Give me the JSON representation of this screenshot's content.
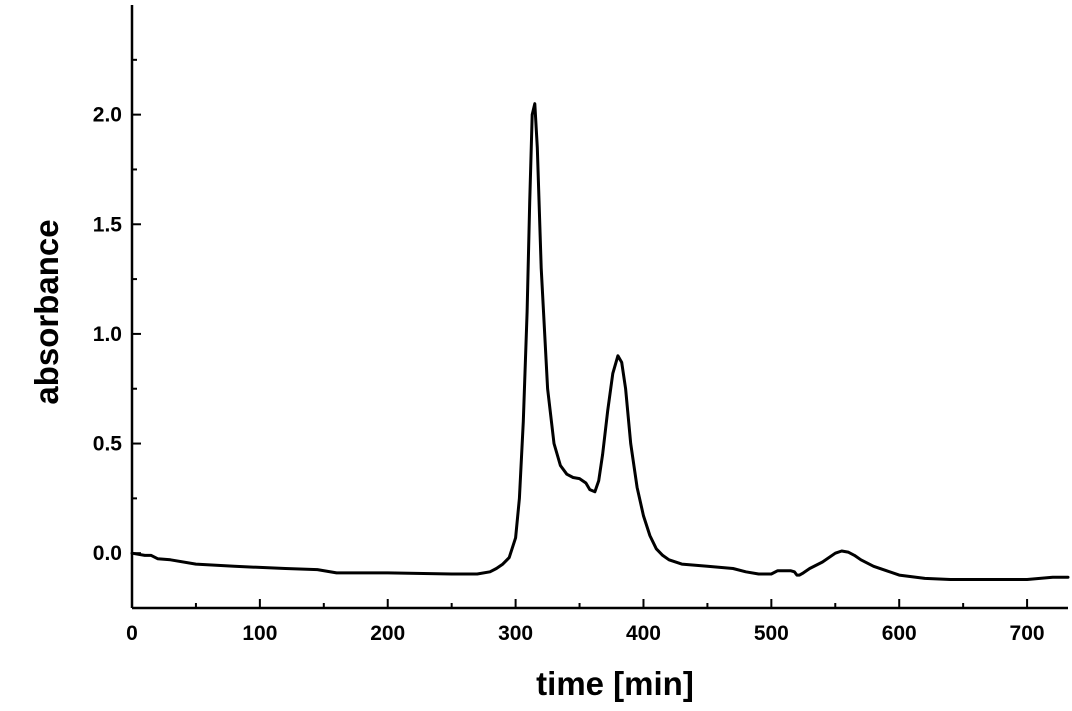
{
  "chart_data": {
    "type": "line",
    "xlabel": "time [min]",
    "ylabel": "absorbance",
    "xlim": [
      0,
      732
    ],
    "ylim": [
      -0.25,
      2.5
    ],
    "grid": false,
    "legend": "none",
    "line_color": "#000000",
    "x_ticks": [
      0,
      100,
      200,
      300,
      400,
      500,
      600,
      700
    ],
    "x_tick_labels": [
      "0",
      "100",
      "200",
      "300",
      "400",
      "500",
      "600",
      "700"
    ],
    "y_ticks": [
      0.0,
      0.5,
      1.0,
      1.5,
      2.0
    ],
    "y_tick_labels": [
      "0.0",
      "0.5",
      "1.0",
      "1.5",
      "2.0"
    ],
    "series": [
      {
        "x": [
          0,
          10,
          15,
          20,
          30,
          50,
          80,
          100,
          120,
          145,
          160,
          200,
          250,
          270,
          280,
          285,
          290,
          295,
          300,
          303,
          306,
          309,
          311,
          313,
          315,
          317,
          320,
          325,
          330,
          335,
          340,
          345,
          350,
          355,
          358,
          362,
          365,
          368,
          372,
          376,
          380,
          383,
          386,
          390,
          395,
          400,
          405,
          410,
          415,
          420,
          430,
          450,
          470,
          480,
          490,
          500,
          505,
          510,
          515,
          518,
          520,
          522,
          525,
          530,
          540,
          550,
          555,
          560,
          565,
          570,
          580,
          590,
          600,
          620,
          640,
          670,
          700,
          720,
          732
        ],
        "y": [
          0.0,
          -0.01,
          -0.01,
          -0.025,
          -0.03,
          -0.05,
          -0.06,
          -0.065,
          -0.07,
          -0.075,
          -0.09,
          -0.09,
          -0.095,
          -0.095,
          -0.085,
          -0.07,
          -0.05,
          -0.02,
          0.07,
          0.25,
          0.6,
          1.1,
          1.6,
          2.0,
          2.05,
          1.85,
          1.3,
          0.75,
          0.5,
          0.4,
          0.36,
          0.345,
          0.34,
          0.32,
          0.29,
          0.28,
          0.33,
          0.45,
          0.65,
          0.82,
          0.9,
          0.87,
          0.75,
          0.5,
          0.3,
          0.17,
          0.08,
          0.02,
          -0.01,
          -0.03,
          -0.05,
          -0.06,
          -0.07,
          -0.085,
          -0.095,
          -0.095,
          -0.08,
          -0.08,
          -0.08,
          -0.085,
          -0.1,
          -0.1,
          -0.09,
          -0.07,
          -0.04,
          0.0,
          0.01,
          0.005,
          -0.01,
          -0.03,
          -0.06,
          -0.08,
          -0.1,
          -0.115,
          -0.12,
          -0.12,
          -0.12,
          -0.11,
          -0.11
        ]
      }
    ]
  }
}
